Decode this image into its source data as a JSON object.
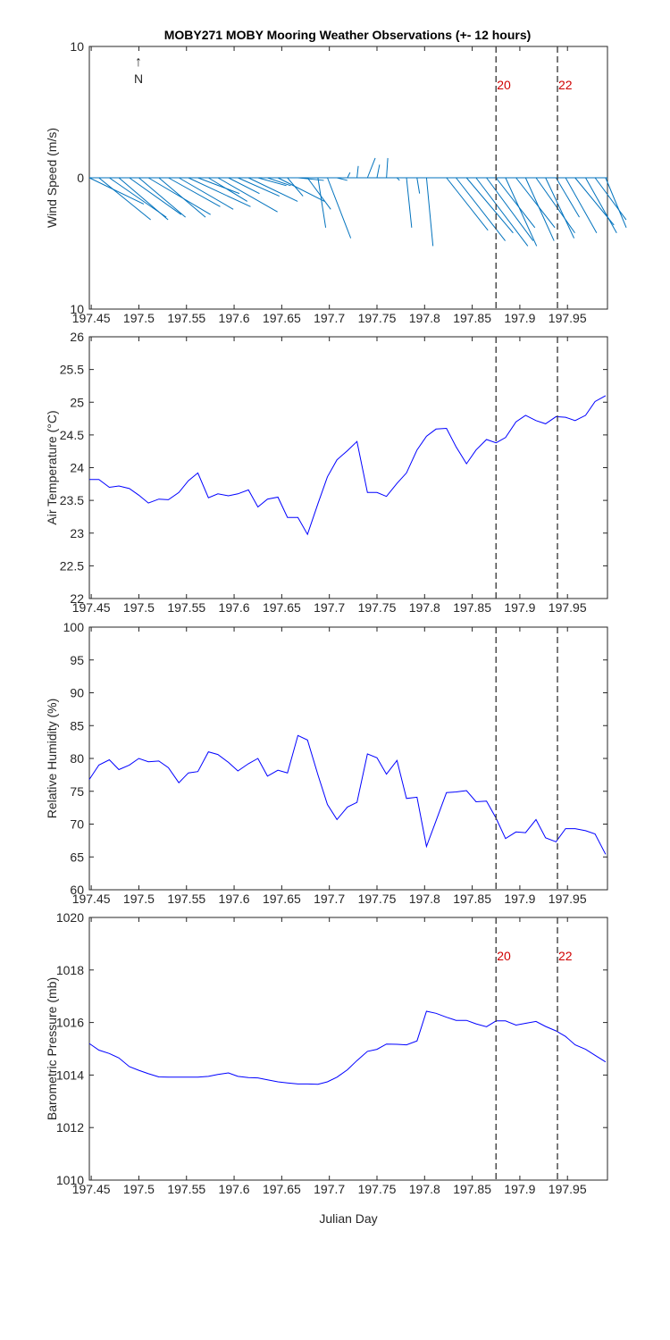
{
  "title": "MOBY271 MOBY Mooring Weather Observations (+- 12 hours)",
  "colors": {
    "wind": "#0072BD",
    "series": "#0000FF",
    "vline": "#404040",
    "annotation": "#D00000",
    "axis": "#262626"
  },
  "compass": {
    "arrow": "↑",
    "label": "N"
  },
  "x_tick_labels": [
    "197.45",
    "197.5",
    "197.55",
    "197.6",
    "197.65",
    "197.7",
    "197.75",
    "197.8",
    "197.85",
    "197.9",
    "197.95"
  ],
  "chart_data": [
    {
      "type": "line",
      "name": "wind",
      "ylabel": "Wind Speed (m/s)",
      "xlim": [
        197.448,
        197.992
      ],
      "ylim": [
        -10,
        10
      ],
      "ytick_values": [
        10,
        0,
        -10
      ],
      "ytick_labels": [
        "10",
        "0",
        "10"
      ],
      "grid": false,
      "vlines": [
        {
          "x": 197.875,
          "label": "20"
        },
        {
          "x": 197.9395,
          "label": "22"
        }
      ],
      "wind_vectors": {
        "x": [
          197.448,
          197.458,
          197.469,
          197.479,
          197.49,
          197.5,
          197.51,
          197.521,
          197.531,
          197.542,
          197.552,
          197.562,
          197.573,
          197.583,
          197.594,
          197.604,
          197.615,
          197.625,
          197.635,
          197.646,
          197.656,
          197.667,
          197.677,
          197.688,
          197.698,
          197.708,
          197.719,
          197.729,
          197.74,
          197.75,
          197.76,
          197.771,
          197.781,
          197.792,
          197.802,
          197.812,
          197.823,
          197.833,
          197.844,
          197.854,
          197.865,
          197.875,
          197.885,
          197.896,
          197.906,
          197.917,
          197.927,
          197.938,
          197.948,
          197.958,
          197.969,
          197.979,
          197.99
        ],
        "u": [
          4.2,
          4.0,
          4.4,
          3.8,
          4.0,
          3.6,
          4.8,
          3.6,
          4.0,
          4.2,
          4.8,
          3.2,
          3.0,
          4.6,
          2.4,
          3.2,
          3.8,
          2.2,
          1.8,
          3.6,
          1.2,
          2.0,
          1.8,
          0.6,
          1.8,
          0.8,
          0.2,
          0.1,
          0.6,
          0.2,
          0.1,
          0.2,
          0.4,
          0.2,
          0.5,
          0.8,
          3.2,
          3.8,
          3.6,
          4.0,
          3.6,
          3.0,
          2.4,
          3.0,
          2.2,
          3.0,
          2.2,
          1.8,
          2.4,
          3.0,
          2.4,
          2.4,
          1.6
        ],
        "v": [
          -2.0,
          -3.2,
          -3.0,
          -3.2,
          -2.8,
          -3.0,
          -2.8,
          -3.0,
          -2.2,
          -2.4,
          -2.2,
          -1.2,
          -1.8,
          -2.6,
          -1.2,
          -1.4,
          -1.8,
          -0.6,
          -0.6,
          -1.8,
          -1.4,
          -0.2,
          -2.4,
          -3.8,
          -4.6,
          -0.2,
          0.4,
          0.9,
          1.5,
          1.0,
          1.5,
          -0.2,
          -3.8,
          -1.2,
          -5.2,
          0.0,
          -4.0,
          -4.8,
          -4.2,
          -5.2,
          -4.8,
          -3.8,
          -5.2,
          -3.8,
          -4.8,
          -4.2,
          -4.6,
          -3.0,
          -4.2,
          -3.6,
          -4.2,
          -3.2,
          -3.8
        ]
      }
    },
    {
      "type": "line",
      "name": "air-temperature",
      "ylabel": "Air Temperature (°C)",
      "xlim": [
        197.448,
        197.992
      ],
      "ylim": [
        22,
        26
      ],
      "ytick_values": [
        22,
        22.5,
        23,
        23.5,
        24,
        24.5,
        25,
        25.5,
        26
      ],
      "ytick_labels": [
        "22",
        "22.5",
        "23",
        "23.5",
        "24",
        "24.5",
        "25",
        "25.5",
        "26"
      ],
      "grid": false,
      "vlines": [
        {
          "x": 197.875,
          "label": ""
        },
        {
          "x": 197.9395,
          "label": ""
        }
      ],
      "x": [
        197.448,
        197.458,
        197.469,
        197.479,
        197.49,
        197.5,
        197.51,
        197.521,
        197.531,
        197.542,
        197.552,
        197.562,
        197.573,
        197.583,
        197.594,
        197.604,
        197.615,
        197.625,
        197.635,
        197.646,
        197.656,
        197.667,
        197.677,
        197.688,
        197.698,
        197.708,
        197.719,
        197.729,
        197.74,
        197.75,
        197.76,
        197.771,
        197.781,
        197.792,
        197.802,
        197.812,
        197.823,
        197.833,
        197.844,
        197.854,
        197.865,
        197.875,
        197.885,
        197.896,
        197.906,
        197.917,
        197.927,
        197.938,
        197.948,
        197.958,
        197.969,
        197.979,
        197.99
      ],
      "y": [
        23.82,
        23.82,
        23.7,
        23.72,
        23.68,
        23.58,
        23.46,
        23.52,
        23.51,
        23.62,
        23.8,
        23.92,
        23.54,
        23.6,
        23.57,
        23.6,
        23.66,
        23.4,
        23.52,
        23.55,
        23.24,
        23.24,
        22.98,
        23.45,
        23.86,
        24.12,
        24.26,
        24.4,
        23.62,
        23.62,
        23.56,
        23.76,
        23.92,
        24.27,
        24.48,
        24.59,
        24.6,
        24.32,
        24.06,
        24.27,
        24.43,
        24.38,
        24.46,
        24.7,
        24.8,
        24.72,
        24.67,
        24.78,
        24.77,
        24.72,
        24.8,
        25.01,
        25.1
      ]
    },
    {
      "type": "line",
      "name": "relative-humidity",
      "ylabel": "Relative Humidity (%)",
      "xlim": [
        197.448,
        197.992
      ],
      "ylim": [
        60,
        100
      ],
      "ytick_values": [
        60,
        65,
        70,
        75,
        80,
        85,
        90,
        95,
        100
      ],
      "ytick_labels": [
        "60",
        "65",
        "70",
        "75",
        "80",
        "85",
        "90",
        "95",
        "100"
      ],
      "grid": false,
      "vlines": [
        {
          "x": 197.875,
          "label": ""
        },
        {
          "x": 197.9395,
          "label": ""
        }
      ],
      "x": [
        197.448,
        197.458,
        197.469,
        197.479,
        197.49,
        197.5,
        197.51,
        197.521,
        197.531,
        197.542,
        197.552,
        197.562,
        197.573,
        197.583,
        197.594,
        197.604,
        197.615,
        197.625,
        197.635,
        197.646,
        197.656,
        197.667,
        197.677,
        197.688,
        197.698,
        197.708,
        197.719,
        197.729,
        197.74,
        197.75,
        197.76,
        197.771,
        197.781,
        197.792,
        197.802,
        197.812,
        197.823,
        197.833,
        197.844,
        197.854,
        197.865,
        197.875,
        197.885,
        197.896,
        197.906,
        197.917,
        197.927,
        197.938,
        197.948,
        197.958,
        197.969,
        197.979,
        197.99
      ],
      "y": [
        76.8,
        79.0,
        79.8,
        78.3,
        79.0,
        80.0,
        79.5,
        79.6,
        78.6,
        76.3,
        77.8,
        78.0,
        81.0,
        80.6,
        79.4,
        78.1,
        79.2,
        80.0,
        77.3,
        78.2,
        77.8,
        83.5,
        82.8,
        77.5,
        73.0,
        70.7,
        72.6,
        73.3,
        80.7,
        80.1,
        77.6,
        79.7,
        73.9,
        74.1,
        66.6,
        70.5,
        74.8,
        74.9,
        75.1,
        73.4,
        73.5,
        70.9,
        67.8,
        68.8,
        68.7,
        70.7,
        67.9,
        67.3,
        69.3,
        69.3,
        69.0,
        68.5,
        65.4
      ]
    },
    {
      "type": "line",
      "name": "barometric-pressure",
      "ylabel": "Barometric Pressure (mb)",
      "xlabel": "Julian Day",
      "xlim": [
        197.448,
        197.992
      ],
      "ylim": [
        1010,
        1020
      ],
      "ytick_values": [
        1010,
        1012,
        1014,
        1016,
        1018,
        1020
      ],
      "ytick_labels": [
        "1010",
        "1012",
        "1014",
        "1016",
        "1018",
        "1020"
      ],
      "grid": false,
      "vlines": [
        {
          "x": 197.875,
          "label": "20"
        },
        {
          "x": 197.9395,
          "label": "22"
        }
      ],
      "x": [
        197.448,
        197.458,
        197.469,
        197.479,
        197.49,
        197.5,
        197.51,
        197.521,
        197.531,
        197.542,
        197.552,
        197.562,
        197.573,
        197.583,
        197.594,
        197.604,
        197.615,
        197.625,
        197.635,
        197.646,
        197.656,
        197.667,
        197.677,
        197.688,
        197.698,
        197.708,
        197.719,
        197.729,
        197.74,
        197.75,
        197.76,
        197.771,
        197.781,
        197.792,
        197.802,
        197.812,
        197.823,
        197.833,
        197.844,
        197.854,
        197.865,
        197.875,
        197.885,
        197.896,
        197.906,
        197.917,
        197.927,
        197.938,
        197.948,
        197.958,
        197.969,
        197.979,
        197.99
      ],
      "y": [
        1015.2,
        1014.95,
        1014.82,
        1014.65,
        1014.32,
        1014.18,
        1014.05,
        1013.93,
        1013.92,
        1013.92,
        1013.92,
        1013.92,
        1013.95,
        1014.02,
        1014.08,
        1013.95,
        1013.9,
        1013.89,
        1013.82,
        1013.74,
        1013.7,
        1013.66,
        1013.66,
        1013.65,
        1013.74,
        1013.92,
        1014.2,
        1014.55,
        1014.9,
        1014.98,
        1015.18,
        1015.17,
        1015.15,
        1015.3,
        1016.43,
        1016.35,
        1016.2,
        1016.08,
        1016.08,
        1015.95,
        1015.84,
        1016.06,
        1016.06,
        1015.9,
        1015.97,
        1016.04,
        1015.85,
        1015.68,
        1015.47,
        1015.15,
        1014.98,
        1014.75,
        1014.5
      ]
    }
  ]
}
